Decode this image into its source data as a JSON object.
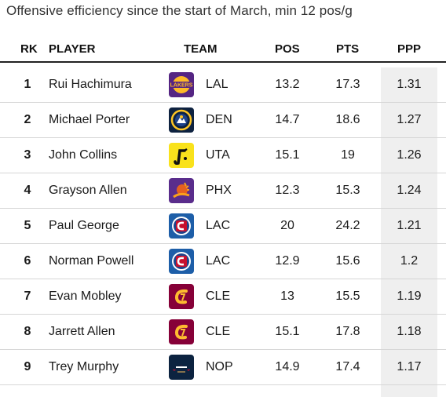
{
  "title": "Offensive efficiency since the start of March, min 12 pos/g",
  "columns": {
    "rk": "RK",
    "player": "PLAYER",
    "team": "TEAM",
    "pos": "POS",
    "pts": "PTS",
    "ppp": "PPP"
  },
  "rows": [
    {
      "rk": "1",
      "player": "Rui Hachimura",
      "team": "LAL",
      "pos": "13.2",
      "pts": "17.3",
      "ppp": "1.31",
      "logo": "lakers-logo-icon"
    },
    {
      "rk": "2",
      "player": "Michael Porter",
      "team": "DEN",
      "pos": "14.7",
      "pts": "18.6",
      "ppp": "1.27",
      "logo": "nuggets-logo-icon"
    },
    {
      "rk": "3",
      "player": "John Collins",
      "team": "UTA",
      "pos": "15.1",
      "pts": "19",
      "ppp": "1.26",
      "logo": "jazz-logo-icon"
    },
    {
      "rk": "4",
      "player": "Grayson Allen",
      "team": "PHX",
      "pos": "12.3",
      "pts": "15.3",
      "ppp": "1.24",
      "logo": "suns-logo-icon"
    },
    {
      "rk": "5",
      "player": "Paul George",
      "team": "LAC",
      "pos": "20",
      "pts": "24.2",
      "ppp": "1.21",
      "logo": "clippers-logo-icon"
    },
    {
      "rk": "6",
      "player": "Norman Powell",
      "team": "LAC",
      "pos": "12.9",
      "pts": "15.6",
      "ppp": "1.2",
      "logo": "clippers-logo-icon"
    },
    {
      "rk": "7",
      "player": "Evan Mobley",
      "team": "CLE",
      "pos": "13",
      "pts": "15.5",
      "ppp": "1.19",
      "logo": "cavaliers-logo-icon"
    },
    {
      "rk": "8",
      "player": "Jarrett Allen",
      "team": "CLE",
      "pos": "15.1",
      "pts": "17.8",
      "ppp": "1.18",
      "logo": "cavaliers-logo-icon"
    },
    {
      "rk": "9",
      "player": "Trey Murphy",
      "team": "NOP",
      "pos": "14.9",
      "pts": "17.4",
      "ppp": "1.17",
      "logo": "pelicans-logo-icon"
    }
  ]
}
